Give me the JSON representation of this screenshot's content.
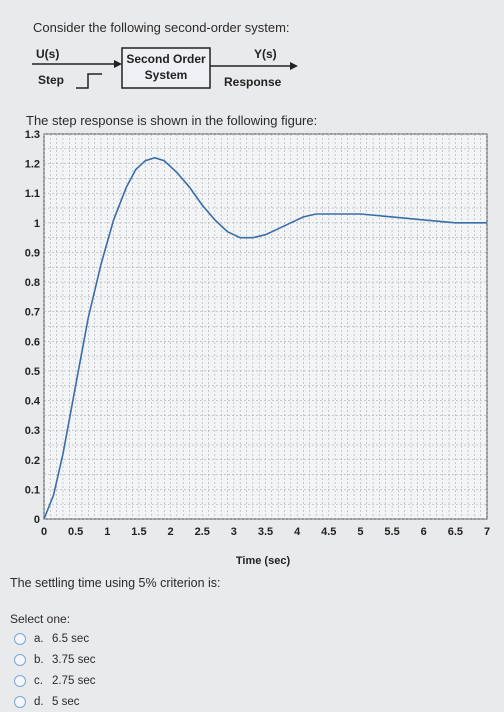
{
  "intro_text": "Consider the following second-order system:",
  "diagram": {
    "input_label": "U(s)",
    "input_sublabel": "Step",
    "block_line1": "Second Order",
    "block_line2": "System",
    "output_label": "Y(s)",
    "output_sublabel": "Response"
  },
  "step_text": "The step response is shown in the following figure:",
  "chart_data": {
    "type": "line",
    "xlabel": "Time (sec)",
    "ylabel": "",
    "xlim": [
      0,
      7
    ],
    "ylim": [
      0,
      1.3
    ],
    "x_ticks": [
      "0",
      "0.5",
      "1",
      "1.5",
      "2",
      "2.5",
      "3",
      "3.5",
      "4",
      "4.5",
      "5",
      "5.5",
      "6",
      "6.5",
      "7"
    ],
    "y_ticks": [
      "0",
      "0.1",
      "0.2",
      "0.3",
      "0.4",
      "0.5",
      "0.6",
      "0.7",
      "0.8",
      "0.9",
      "1",
      "1.1",
      "1.2",
      "1.3"
    ],
    "grid": true,
    "series": [
      {
        "color": "#3a6ea8",
        "x": [
          0,
          0.15,
          0.3,
          0.5,
          0.7,
          0.9,
          1.1,
          1.3,
          1.45,
          1.6,
          1.75,
          1.9,
          2.1,
          2.3,
          2.5,
          2.7,
          2.9,
          3.1,
          3.3,
          3.5,
          3.7,
          3.9,
          4.1,
          4.3,
          4.5,
          5.0,
          5.5,
          6.0,
          6.5,
          7.0
        ],
        "y": [
          0,
          0.08,
          0.22,
          0.45,
          0.68,
          0.86,
          1.01,
          1.12,
          1.18,
          1.21,
          1.22,
          1.21,
          1.17,
          1.12,
          1.06,
          1.01,
          0.97,
          0.95,
          0.95,
          0.96,
          0.98,
          1.0,
          1.02,
          1.03,
          1.03,
          1.03,
          1.02,
          1.01,
          1.0,
          1.0
        ]
      }
    ]
  },
  "question": "The settling time using 5% criterion is:",
  "select_one": "Select one:",
  "options": [
    {
      "letter": "a.",
      "text": "6.5 sec"
    },
    {
      "letter": "b.",
      "text": "3.75 sec"
    },
    {
      "letter": "c.",
      "text": "2.75 sec"
    },
    {
      "letter": "d.",
      "text": "5 sec"
    }
  ]
}
